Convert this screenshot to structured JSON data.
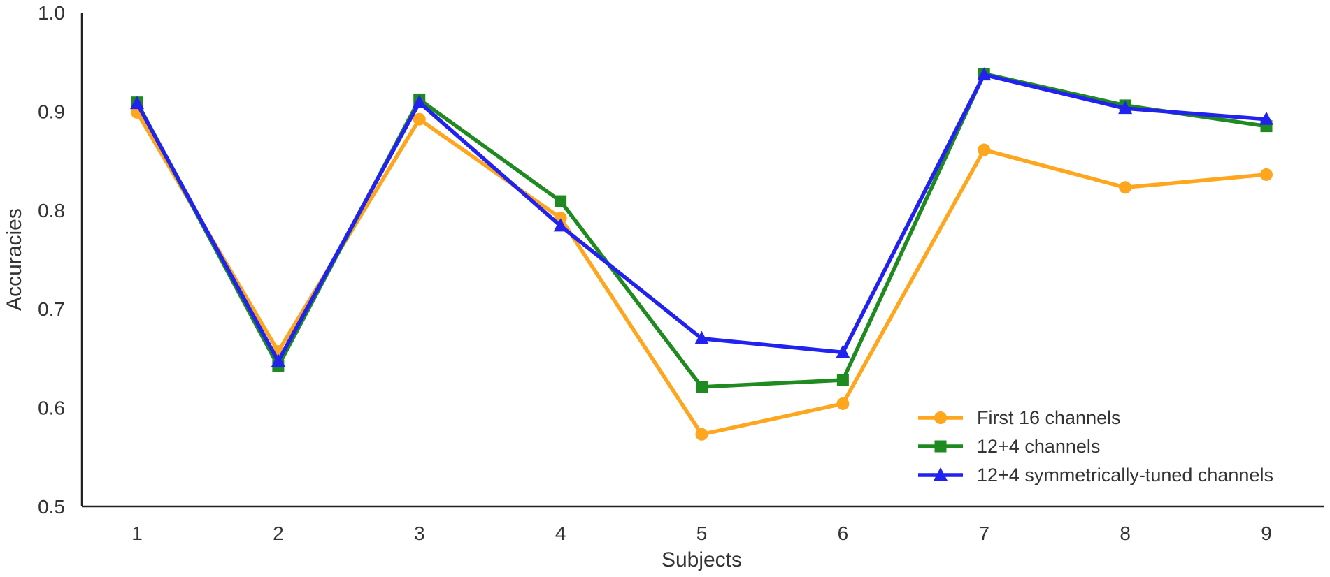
{
  "chart_data": {
    "type": "line",
    "title": "",
    "xlabel": "Subjects",
    "ylabel": "Accuracies",
    "x": [
      1,
      2,
      3,
      4,
      5,
      6,
      7,
      8,
      9
    ],
    "x_tick_labels": [
      "1",
      "2",
      "3",
      "4",
      "5",
      "6",
      "7",
      "8",
      "9"
    ],
    "ylim": [
      0.5,
      1.0
    ],
    "y_ticks": [
      0.5,
      0.6,
      0.7,
      0.8,
      0.9,
      1.0
    ],
    "y_tick_labels": [
      "0.5",
      "0.6",
      "0.7",
      "0.8",
      "0.9",
      "1.0"
    ],
    "grid": false,
    "legend_position": "lower-right",
    "series": [
      {
        "name": "First 16 channels",
        "color": "#FFA61F",
        "marker": "circle",
        "values": [
          0.899,
          0.657,
          0.892,
          0.792,
          0.573,
          0.604,
          0.861,
          0.823,
          0.836
        ]
      },
      {
        "name": "12+4 channels",
        "color": "#1F8A1F",
        "marker": "square",
        "values": [
          0.909,
          0.642,
          0.912,
          0.809,
          0.621,
          0.628,
          0.938,
          0.906,
          0.885
        ]
      },
      {
        "name": "12+4 symmetrically-tuned channels",
        "color": "#2222F0",
        "marker": "triangle",
        "values": [
          0.908,
          0.647,
          0.909,
          0.784,
          0.67,
          0.656,
          0.937,
          0.903,
          0.892
        ]
      }
    ]
  }
}
